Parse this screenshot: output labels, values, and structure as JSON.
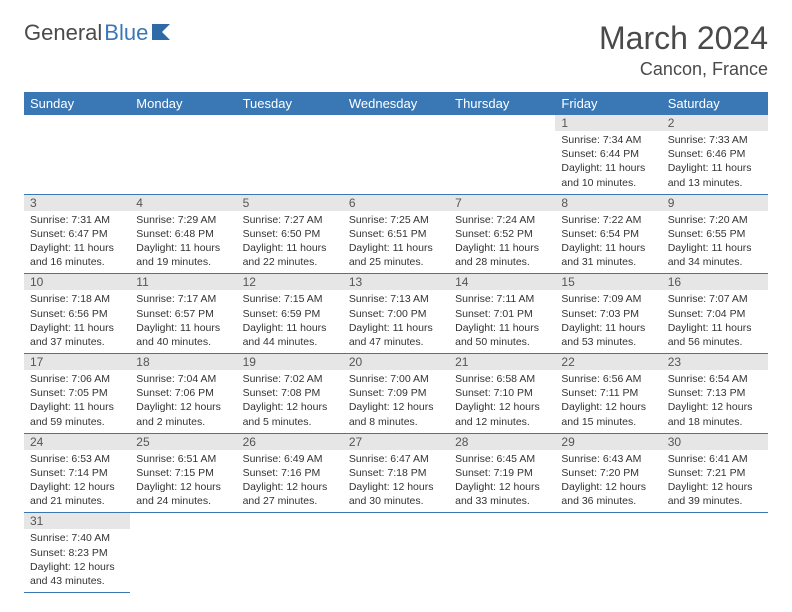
{
  "brand": {
    "part1": "General",
    "part2": "Blue"
  },
  "title": "March 2024",
  "location": "Cancon, France",
  "colors": {
    "header_bg": "#3a78b5",
    "header_fg": "#ffffff",
    "daynum_bg": "#e6e6e6",
    "rule": "#3a78b5",
    "text": "#333333",
    "title_color": "#4a4a4a"
  },
  "weekdays": [
    "Sunday",
    "Monday",
    "Tuesday",
    "Wednesday",
    "Thursday",
    "Friday",
    "Saturday"
  ],
  "weeks": [
    [
      {
        "n": "",
        "sr": "",
        "ss": "",
        "dl": ""
      },
      {
        "n": "",
        "sr": "",
        "ss": "",
        "dl": ""
      },
      {
        "n": "",
        "sr": "",
        "ss": "",
        "dl": ""
      },
      {
        "n": "",
        "sr": "",
        "ss": "",
        "dl": ""
      },
      {
        "n": "",
        "sr": "",
        "ss": "",
        "dl": ""
      },
      {
        "n": "1",
        "sr": "Sunrise: 7:34 AM",
        "ss": "Sunset: 6:44 PM",
        "dl": "Daylight: 11 hours and 10 minutes."
      },
      {
        "n": "2",
        "sr": "Sunrise: 7:33 AM",
        "ss": "Sunset: 6:46 PM",
        "dl": "Daylight: 11 hours and 13 minutes."
      }
    ],
    [
      {
        "n": "3",
        "sr": "Sunrise: 7:31 AM",
        "ss": "Sunset: 6:47 PM",
        "dl": "Daylight: 11 hours and 16 minutes."
      },
      {
        "n": "4",
        "sr": "Sunrise: 7:29 AM",
        "ss": "Sunset: 6:48 PM",
        "dl": "Daylight: 11 hours and 19 minutes."
      },
      {
        "n": "5",
        "sr": "Sunrise: 7:27 AM",
        "ss": "Sunset: 6:50 PM",
        "dl": "Daylight: 11 hours and 22 minutes."
      },
      {
        "n": "6",
        "sr": "Sunrise: 7:25 AM",
        "ss": "Sunset: 6:51 PM",
        "dl": "Daylight: 11 hours and 25 minutes."
      },
      {
        "n": "7",
        "sr": "Sunrise: 7:24 AM",
        "ss": "Sunset: 6:52 PM",
        "dl": "Daylight: 11 hours and 28 minutes."
      },
      {
        "n": "8",
        "sr": "Sunrise: 7:22 AM",
        "ss": "Sunset: 6:54 PM",
        "dl": "Daylight: 11 hours and 31 minutes."
      },
      {
        "n": "9",
        "sr": "Sunrise: 7:20 AM",
        "ss": "Sunset: 6:55 PM",
        "dl": "Daylight: 11 hours and 34 minutes."
      }
    ],
    [
      {
        "n": "10",
        "sr": "Sunrise: 7:18 AM",
        "ss": "Sunset: 6:56 PM",
        "dl": "Daylight: 11 hours and 37 minutes."
      },
      {
        "n": "11",
        "sr": "Sunrise: 7:17 AM",
        "ss": "Sunset: 6:57 PM",
        "dl": "Daylight: 11 hours and 40 minutes."
      },
      {
        "n": "12",
        "sr": "Sunrise: 7:15 AM",
        "ss": "Sunset: 6:59 PM",
        "dl": "Daylight: 11 hours and 44 minutes."
      },
      {
        "n": "13",
        "sr": "Sunrise: 7:13 AM",
        "ss": "Sunset: 7:00 PM",
        "dl": "Daylight: 11 hours and 47 minutes."
      },
      {
        "n": "14",
        "sr": "Sunrise: 7:11 AM",
        "ss": "Sunset: 7:01 PM",
        "dl": "Daylight: 11 hours and 50 minutes."
      },
      {
        "n": "15",
        "sr": "Sunrise: 7:09 AM",
        "ss": "Sunset: 7:03 PM",
        "dl": "Daylight: 11 hours and 53 minutes."
      },
      {
        "n": "16",
        "sr": "Sunrise: 7:07 AM",
        "ss": "Sunset: 7:04 PM",
        "dl": "Daylight: 11 hours and 56 minutes."
      }
    ],
    [
      {
        "n": "17",
        "sr": "Sunrise: 7:06 AM",
        "ss": "Sunset: 7:05 PM",
        "dl": "Daylight: 11 hours and 59 minutes."
      },
      {
        "n": "18",
        "sr": "Sunrise: 7:04 AM",
        "ss": "Sunset: 7:06 PM",
        "dl": "Daylight: 12 hours and 2 minutes."
      },
      {
        "n": "19",
        "sr": "Sunrise: 7:02 AM",
        "ss": "Sunset: 7:08 PM",
        "dl": "Daylight: 12 hours and 5 minutes."
      },
      {
        "n": "20",
        "sr": "Sunrise: 7:00 AM",
        "ss": "Sunset: 7:09 PM",
        "dl": "Daylight: 12 hours and 8 minutes."
      },
      {
        "n": "21",
        "sr": "Sunrise: 6:58 AM",
        "ss": "Sunset: 7:10 PM",
        "dl": "Daylight: 12 hours and 12 minutes."
      },
      {
        "n": "22",
        "sr": "Sunrise: 6:56 AM",
        "ss": "Sunset: 7:11 PM",
        "dl": "Daylight: 12 hours and 15 minutes."
      },
      {
        "n": "23",
        "sr": "Sunrise: 6:54 AM",
        "ss": "Sunset: 7:13 PM",
        "dl": "Daylight: 12 hours and 18 minutes."
      }
    ],
    [
      {
        "n": "24",
        "sr": "Sunrise: 6:53 AM",
        "ss": "Sunset: 7:14 PM",
        "dl": "Daylight: 12 hours and 21 minutes."
      },
      {
        "n": "25",
        "sr": "Sunrise: 6:51 AM",
        "ss": "Sunset: 7:15 PM",
        "dl": "Daylight: 12 hours and 24 minutes."
      },
      {
        "n": "26",
        "sr": "Sunrise: 6:49 AM",
        "ss": "Sunset: 7:16 PM",
        "dl": "Daylight: 12 hours and 27 minutes."
      },
      {
        "n": "27",
        "sr": "Sunrise: 6:47 AM",
        "ss": "Sunset: 7:18 PM",
        "dl": "Daylight: 12 hours and 30 minutes."
      },
      {
        "n": "28",
        "sr": "Sunrise: 6:45 AM",
        "ss": "Sunset: 7:19 PM",
        "dl": "Daylight: 12 hours and 33 minutes."
      },
      {
        "n": "29",
        "sr": "Sunrise: 6:43 AM",
        "ss": "Sunset: 7:20 PM",
        "dl": "Daylight: 12 hours and 36 minutes."
      },
      {
        "n": "30",
        "sr": "Sunrise: 6:41 AM",
        "ss": "Sunset: 7:21 PM",
        "dl": "Daylight: 12 hours and 39 minutes."
      }
    ],
    [
      {
        "n": "31",
        "sr": "Sunrise: 7:40 AM",
        "ss": "Sunset: 8:23 PM",
        "dl": "Daylight: 12 hours and 43 minutes."
      },
      {
        "n": "",
        "sr": "",
        "ss": "",
        "dl": ""
      },
      {
        "n": "",
        "sr": "",
        "ss": "",
        "dl": ""
      },
      {
        "n": "",
        "sr": "",
        "ss": "",
        "dl": ""
      },
      {
        "n": "",
        "sr": "",
        "ss": "",
        "dl": ""
      },
      {
        "n": "",
        "sr": "",
        "ss": "",
        "dl": ""
      },
      {
        "n": "",
        "sr": "",
        "ss": "",
        "dl": ""
      }
    ]
  ]
}
